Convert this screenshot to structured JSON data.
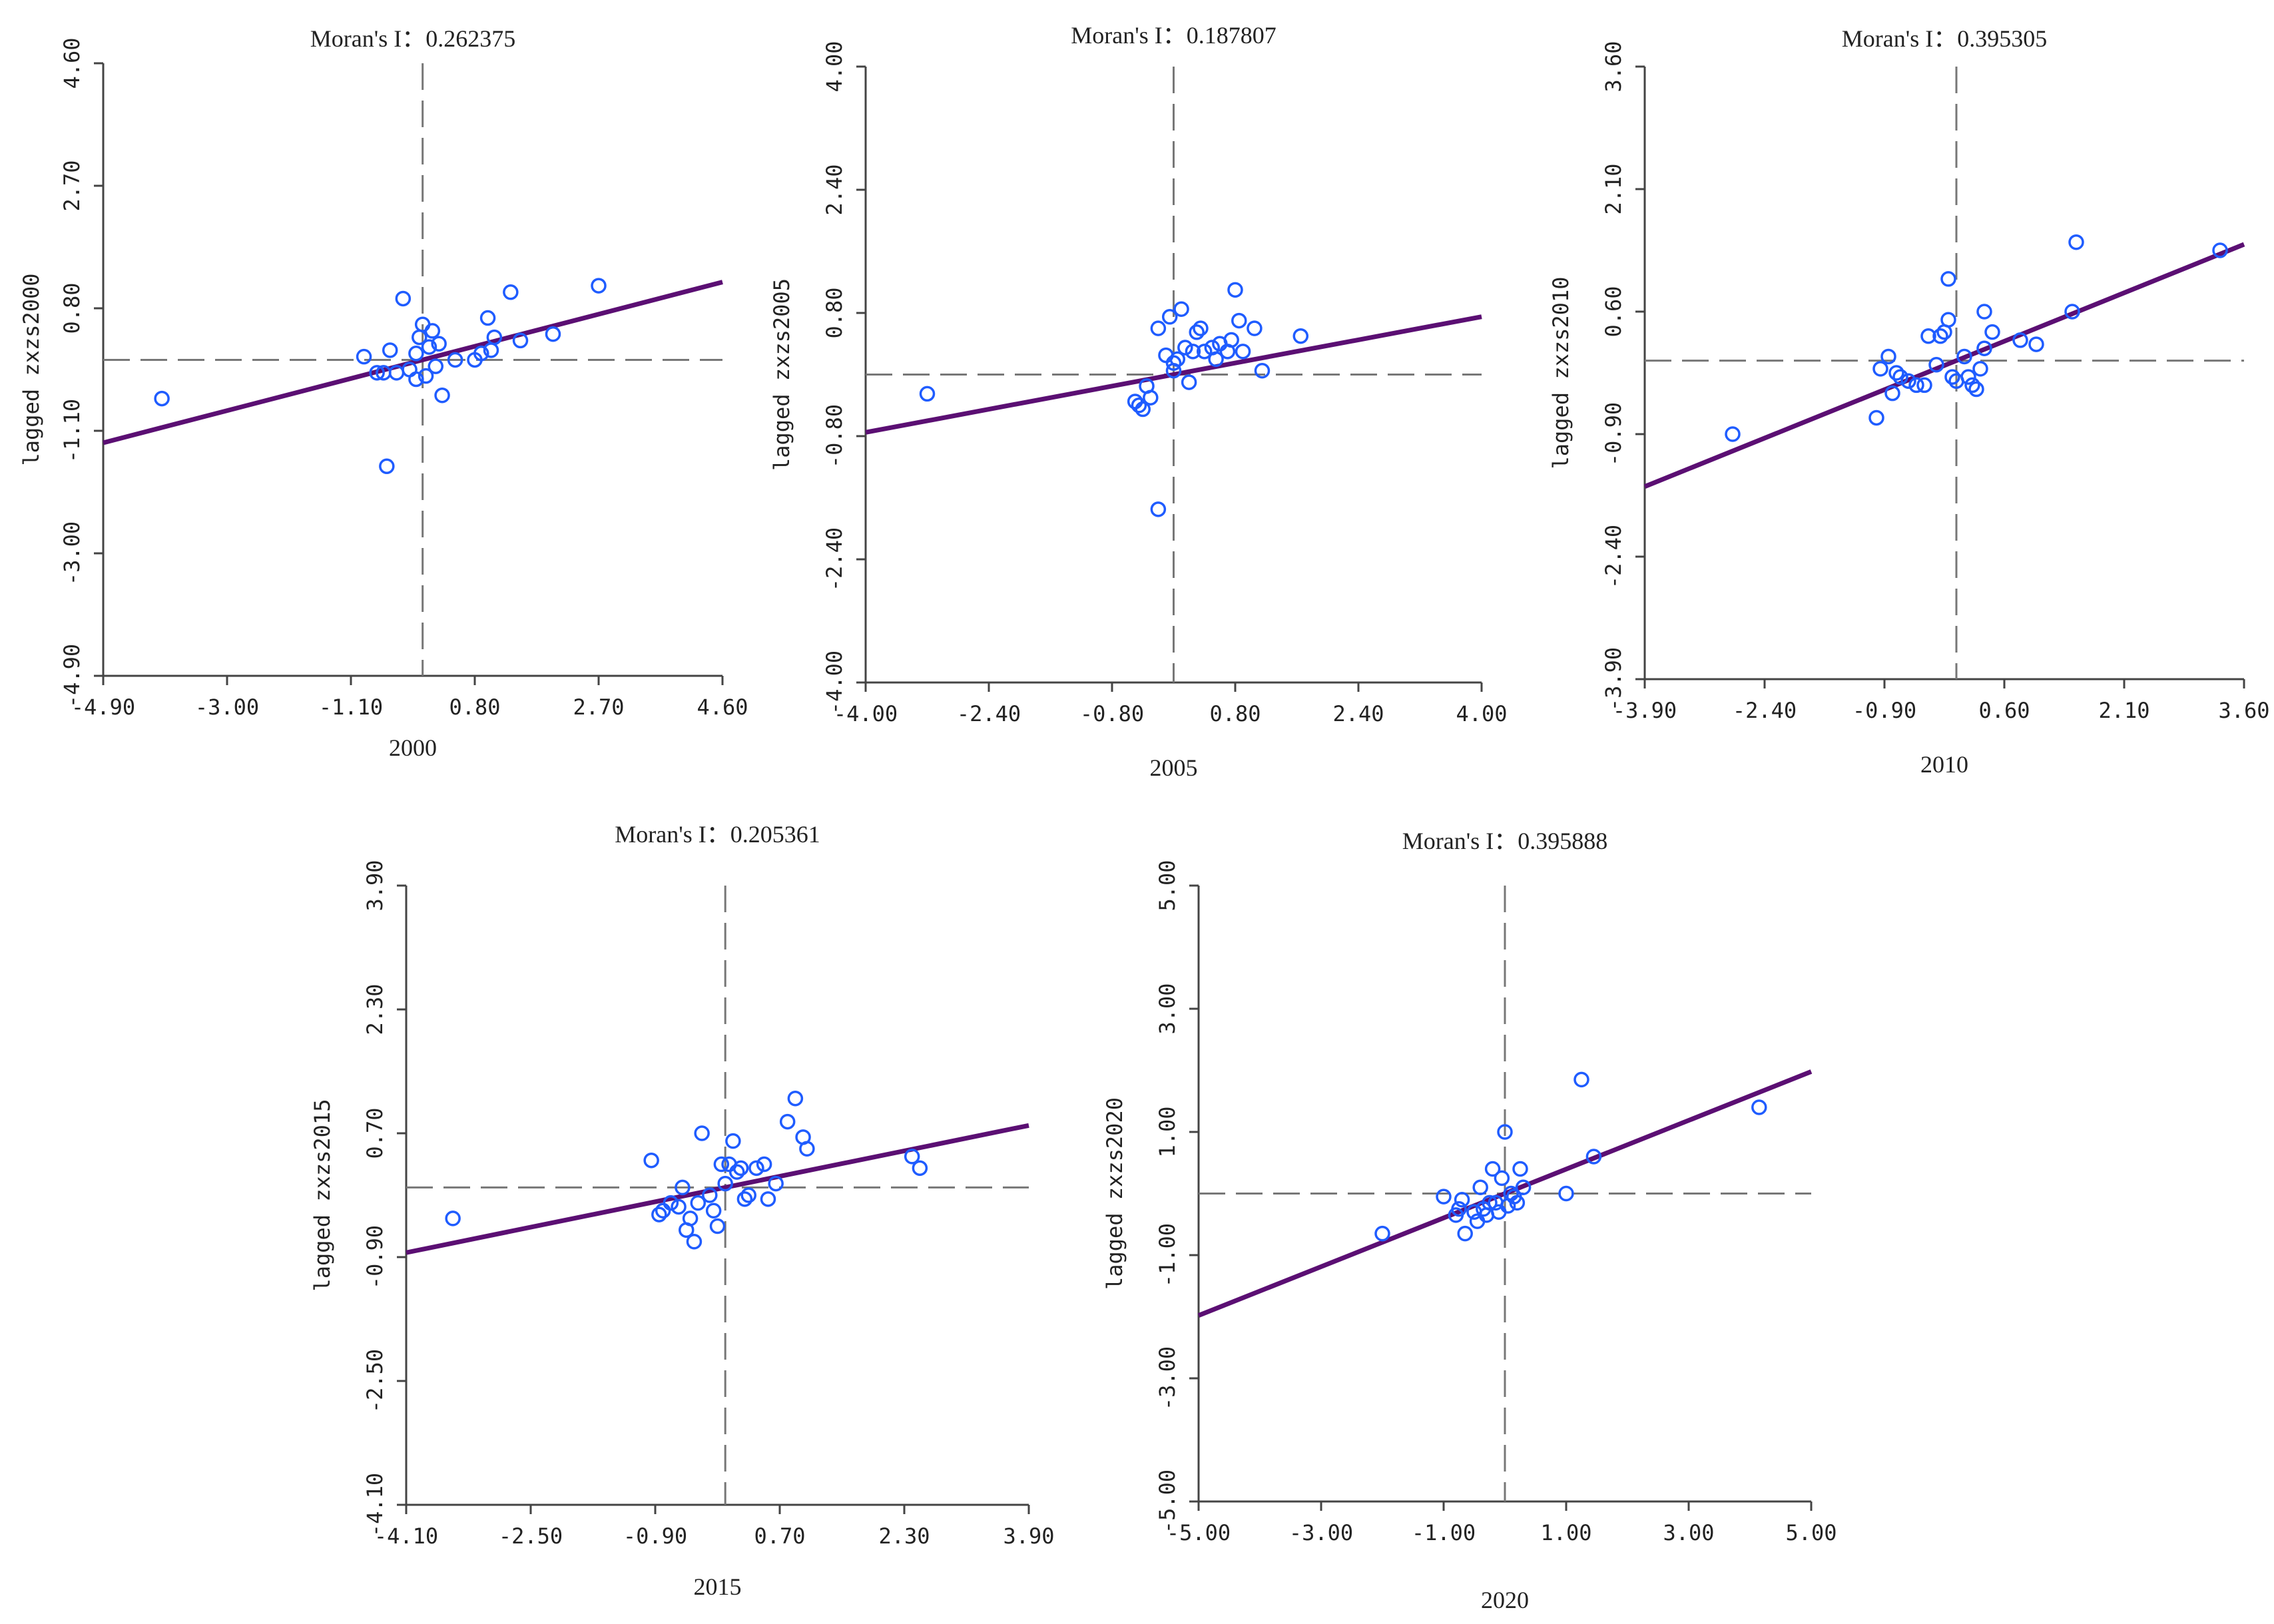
{
  "chart_data": [
    {
      "type": "scatter",
      "title": "Moran's I：0.262375",
      "xlabel": "2000",
      "ylabel": "lagged zxzs2000",
      "xlim": [
        -4.9,
        4.6
      ],
      "ylim": [
        -4.9,
        4.6
      ],
      "xticks": [
        "-4.90",
        "-3.00",
        "-1.10",
        "0.80",
        "2.70",
        "4.60"
      ],
      "yticks": [
        "-4.90",
        "-3.00",
        "-1.10",
        "0.80",
        "2.70",
        "4.60"
      ],
      "moran_i": 0.262375,
      "points": [
        [
          -4.0,
          -0.6
        ],
        [
          -0.9,
          0.05
        ],
        [
          -0.7,
          -0.2
        ],
        [
          -0.6,
          -0.2
        ],
        [
          -0.5,
          0.15
        ],
        [
          -0.55,
          -1.65
        ],
        [
          -0.4,
          -0.2
        ],
        [
          -0.3,
          0.95
        ],
        [
          -0.2,
          -0.15
        ],
        [
          -0.1,
          0.1
        ],
        [
          -0.05,
          0.35
        ],
        [
          0.0,
          0.55
        ],
        [
          0.05,
          -0.25
        ],
        [
          0.1,
          0.2
        ],
        [
          0.15,
          0.45
        ],
        [
          0.2,
          -0.1
        ],
        [
          0.25,
          0.25
        ],
        [
          -0.1,
          -0.3
        ],
        [
          0.3,
          -0.55
        ],
        [
          0.5,
          0.0
        ],
        [
          0.8,
          0.0
        ],
        [
          0.9,
          0.1
        ],
        [
          1.0,
          0.65
        ],
        [
          1.05,
          0.15
        ],
        [
          1.1,
          0.35
        ],
        [
          1.35,
          1.05
        ],
        [
          1.5,
          0.3
        ],
        [
          2.0,
          0.4
        ],
        [
          2.7,
          1.15
        ]
      ],
      "regression": {
        "slope": 0.262375,
        "intercept": 0.0
      }
    },
    {
      "type": "scatter",
      "title": "Moran's I：0.187807",
      "xlabel": "2005",
      "ylabel": "lagged zxzs2005",
      "xlim": [
        -4.0,
        4.0
      ],
      "ylim": [
        -4.0,
        4.0
      ],
      "xticks": [
        "-4.00",
        "-2.40",
        "-0.80",
        "0.80",
        "2.40",
        "4.00"
      ],
      "yticks": [
        "-4.00",
        "-2.40",
        "-0.80",
        "0.80",
        "2.40",
        "4.00"
      ],
      "moran_i": 0.187807,
      "points": [
        [
          -3.2,
          -0.25
        ],
        [
          -0.5,
          -0.35
        ],
        [
          -0.45,
          -0.4
        ],
        [
          -0.4,
          -0.45
        ],
        [
          -0.35,
          -0.15
        ],
        [
          -0.3,
          -0.3
        ],
        [
          -0.2,
          0.6
        ],
        [
          -0.2,
          -1.75
        ],
        [
          -0.1,
          0.25
        ],
        [
          -0.05,
          0.75
        ],
        [
          0.0,
          0.15
        ],
        [
          0.0,
          0.05
        ],
        [
          0.05,
          0.2
        ],
        [
          0.1,
          0.85
        ],
        [
          0.15,
          0.35
        ],
        [
          0.2,
          -0.1
        ],
        [
          0.25,
          0.3
        ],
        [
          0.3,
          0.55
        ],
        [
          0.35,
          0.6
        ],
        [
          0.4,
          0.3
        ],
        [
          0.5,
          0.35
        ],
        [
          0.55,
          0.2
        ],
        [
          0.6,
          0.4
        ],
        [
          0.7,
          0.3
        ],
        [
          0.75,
          0.45
        ],
        [
          0.8,
          1.1
        ],
        [
          0.85,
          0.7
        ],
        [
          0.9,
          0.3
        ],
        [
          1.05,
          0.6
        ],
        [
          1.15,
          0.05
        ],
        [
          1.65,
          0.5
        ]
      ],
      "regression": {
        "slope": 0.187807,
        "intercept": 0.0
      }
    },
    {
      "type": "scatter",
      "title": "Moran's I：0.395305",
      "xlabel": "2010",
      "ylabel": "lagged zxzs2010",
      "xlim": [
        -3.9,
        3.6
      ],
      "ylim": [
        -3.9,
        3.6
      ],
      "xticks": [
        "-3.90",
        "-2.40",
        "-0.90",
        "0.60",
        "2.10",
        "3.60"
      ],
      "yticks": [
        "-3.90",
        "-2.40",
        "-0.90",
        "0.60",
        "2.10",
        "3.60"
      ],
      "moran_i": 0.395305,
      "points": [
        [
          -2.8,
          -0.9
        ],
        [
          -1.0,
          -0.7
        ],
        [
          -0.95,
          -0.1
        ],
        [
          -0.85,
          0.05
        ],
        [
          -0.8,
          -0.4
        ],
        [
          -0.75,
          -0.15
        ],
        [
          -0.7,
          -0.2
        ],
        [
          -0.6,
          -0.25
        ],
        [
          -0.5,
          -0.3
        ],
        [
          -0.4,
          -0.3
        ],
        [
          -0.35,
          0.3
        ],
        [
          -0.25,
          -0.05
        ],
        [
          -0.2,
          0.3
        ],
        [
          -0.15,
          0.35
        ],
        [
          -0.1,
          1.0
        ],
        [
          -0.1,
          0.5
        ],
        [
          -0.05,
          -0.2
        ],
        [
          0.0,
          -0.25
        ],
        [
          0.1,
          0.05
        ],
        [
          0.15,
          -0.2
        ],
        [
          0.2,
          -0.3
        ],
        [
          0.25,
          -0.35
        ],
        [
          0.3,
          -0.1
        ],
        [
          0.35,
          0.6
        ],
        [
          0.35,
          0.15
        ],
        [
          0.45,
          0.35
        ],
        [
          0.8,
          0.25
        ],
        [
          1.0,
          0.2
        ],
        [
          1.45,
          0.6
        ],
        [
          1.5,
          1.45
        ],
        [
          3.3,
          1.35
        ]
      ],
      "regression": {
        "slope": 0.395305,
        "intercept": 0.0
      }
    },
    {
      "type": "scatter",
      "title": "Moran's I：0.205361",
      "xlabel": "2015",
      "ylabel": "lagged zxzs2015",
      "xlim": [
        -4.1,
        3.9
      ],
      "ylim": [
        -4.1,
        3.9
      ],
      "xticks": [
        "-4.10",
        "-2.50",
        "-0.90",
        "0.70",
        "2.30",
        "3.90"
      ],
      "yticks": [
        "-4.10",
        "-2.50",
        "-0.90",
        "0.70",
        "2.30",
        "3.90"
      ],
      "moran_i": 0.205361,
      "points": [
        [
          -3.5,
          -0.4
        ],
        [
          -0.95,
          0.35
        ],
        [
          -0.85,
          -0.35
        ],
        [
          -0.8,
          -0.3
        ],
        [
          -0.7,
          -0.2
        ],
        [
          -0.6,
          -0.25
        ],
        [
          -0.55,
          0.0
        ],
        [
          -0.5,
          -0.55
        ],
        [
          -0.45,
          -0.4
        ],
        [
          -0.4,
          -0.7
        ],
        [
          -0.35,
          -0.2
        ],
        [
          -0.3,
          0.7
        ],
        [
          -0.2,
          -0.1
        ],
        [
          -0.15,
          -0.3
        ],
        [
          -0.1,
          -0.5
        ],
        [
          -0.05,
          0.3
        ],
        [
          0.0,
          0.05
        ],
        [
          0.05,
          0.3
        ],
        [
          0.1,
          0.6
        ],
        [
          0.15,
          0.2
        ],
        [
          0.2,
          0.25
        ],
        [
          0.25,
          -0.15
        ],
        [
          0.3,
          -0.1
        ],
        [
          0.4,
          0.25
        ],
        [
          0.5,
          0.3
        ],
        [
          0.55,
          -0.15
        ],
        [
          0.65,
          0.05
        ],
        [
          0.8,
          0.85
        ],
        [
          0.9,
          1.15
        ],
        [
          1.0,
          0.65
        ],
        [
          1.05,
          0.5
        ],
        [
          2.4,
          0.4
        ],
        [
          2.5,
          0.25
        ]
      ],
      "regression": {
        "slope": 0.205361,
        "intercept": 0.0
      }
    },
    {
      "type": "scatter",
      "title": "Moran's I：0.395888",
      "xlabel": "2020",
      "ylabel": "lagged zxzs2020",
      "xlim": [
        -5.0,
        5.0
      ],
      "ylim": [
        -5.0,
        5.0
      ],
      "xticks": [
        "-5.00",
        "-3.00",
        "-1.00",
        "1.00",
        "3.00",
        "5.00"
      ],
      "yticks": [
        "-5.00",
        "-3.00",
        "-1.00",
        "1.00",
        "3.00",
        "5.00"
      ],
      "moran_i": 0.395888,
      "points": [
        [
          -2.0,
          -0.65
        ],
        [
          -1.0,
          -0.05
        ],
        [
          -0.8,
          -0.35
        ],
        [
          -0.75,
          -0.25
        ],
        [
          -0.7,
          -0.1
        ],
        [
          -0.65,
          -0.65
        ],
        [
          -0.5,
          -0.3
        ],
        [
          -0.45,
          -0.45
        ],
        [
          -0.4,
          0.1
        ],
        [
          -0.35,
          -0.25
        ],
        [
          -0.3,
          -0.35
        ],
        [
          -0.25,
          -0.15
        ],
        [
          -0.2,
          0.4
        ],
        [
          -0.15,
          -0.15
        ],
        [
          -0.1,
          -0.3
        ],
        [
          -0.05,
          0.25
        ],
        [
          0.0,
          1.0
        ],
        [
          0.05,
          -0.2
        ],
        [
          0.1,
          0.0
        ],
        [
          0.15,
          -0.05
        ],
        [
          0.2,
          -0.15
        ],
        [
          0.25,
          0.4
        ],
        [
          0.3,
          0.1
        ],
        [
          1.0,
          0.0
        ],
        [
          1.25,
          1.85
        ],
        [
          1.45,
          0.6
        ],
        [
          4.15,
          1.4
        ]
      ],
      "regression": {
        "slope": 0.395888,
        "intercept": 0.0
      }
    }
  ]
}
